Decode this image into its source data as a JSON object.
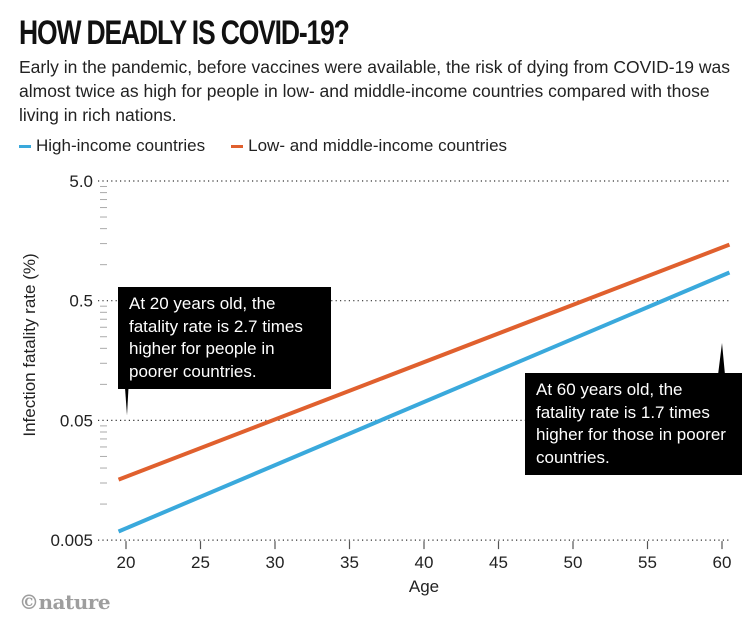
{
  "header": {
    "title": "HOW DEADLY IS COVID-19?",
    "subtitle": "Early in the pandemic, before vaccines were available, the risk of dying from COVID-19 was almost twice as high for people in low- and middle-income countries compared with those living in rich nations."
  },
  "colors": {
    "high": "#3aa9dc",
    "low": "#e0602e",
    "grid": "#333333",
    "annot_bg": "#000000"
  },
  "annotations": [
    {
      "text": "At 20 years old, the fatality rate is 2.7 times higher for people in poorer countries.",
      "age": 20
    },
    {
      "text": "At 60 years old, the fatality rate is 1.7 times higher for those in poorer countries.",
      "age": 60
    }
  ],
  "footer": {
    "logo": "©nature"
  },
  "chart_data": {
    "type": "line",
    "title": "HOW DEADLY IS COVID-19?",
    "xlabel": "Age",
    "ylabel": "Infection fatality rate (%)",
    "yscale": "log",
    "xlim": [
      19.5,
      60.5
    ],
    "ylim": [
      0.005,
      5.0
    ],
    "x_ticks": [
      "20",
      "25",
      "30",
      "35",
      "40",
      "45",
      "50",
      "55",
      "60"
    ],
    "x_tick_values": [
      20,
      25,
      30,
      35,
      40,
      45,
      50,
      55,
      60
    ],
    "y_ticks": [
      "5.0",
      "0.5",
      "0.05",
      "0.005"
    ],
    "y_tick_values": [
      5.0,
      0.5,
      0.05,
      0.005
    ],
    "legend_position": "top-left",
    "series": [
      {
        "name": "High-income countries",
        "key": "high",
        "x": [
          19.5,
          60.5
        ],
        "y": [
          0.0059,
          0.86
        ]
      },
      {
        "name": "Low- and middle-income countries",
        "key": "low",
        "x": [
          19.5,
          60.5
        ],
        "y": [
          0.016,
          1.47
        ]
      }
    ]
  }
}
